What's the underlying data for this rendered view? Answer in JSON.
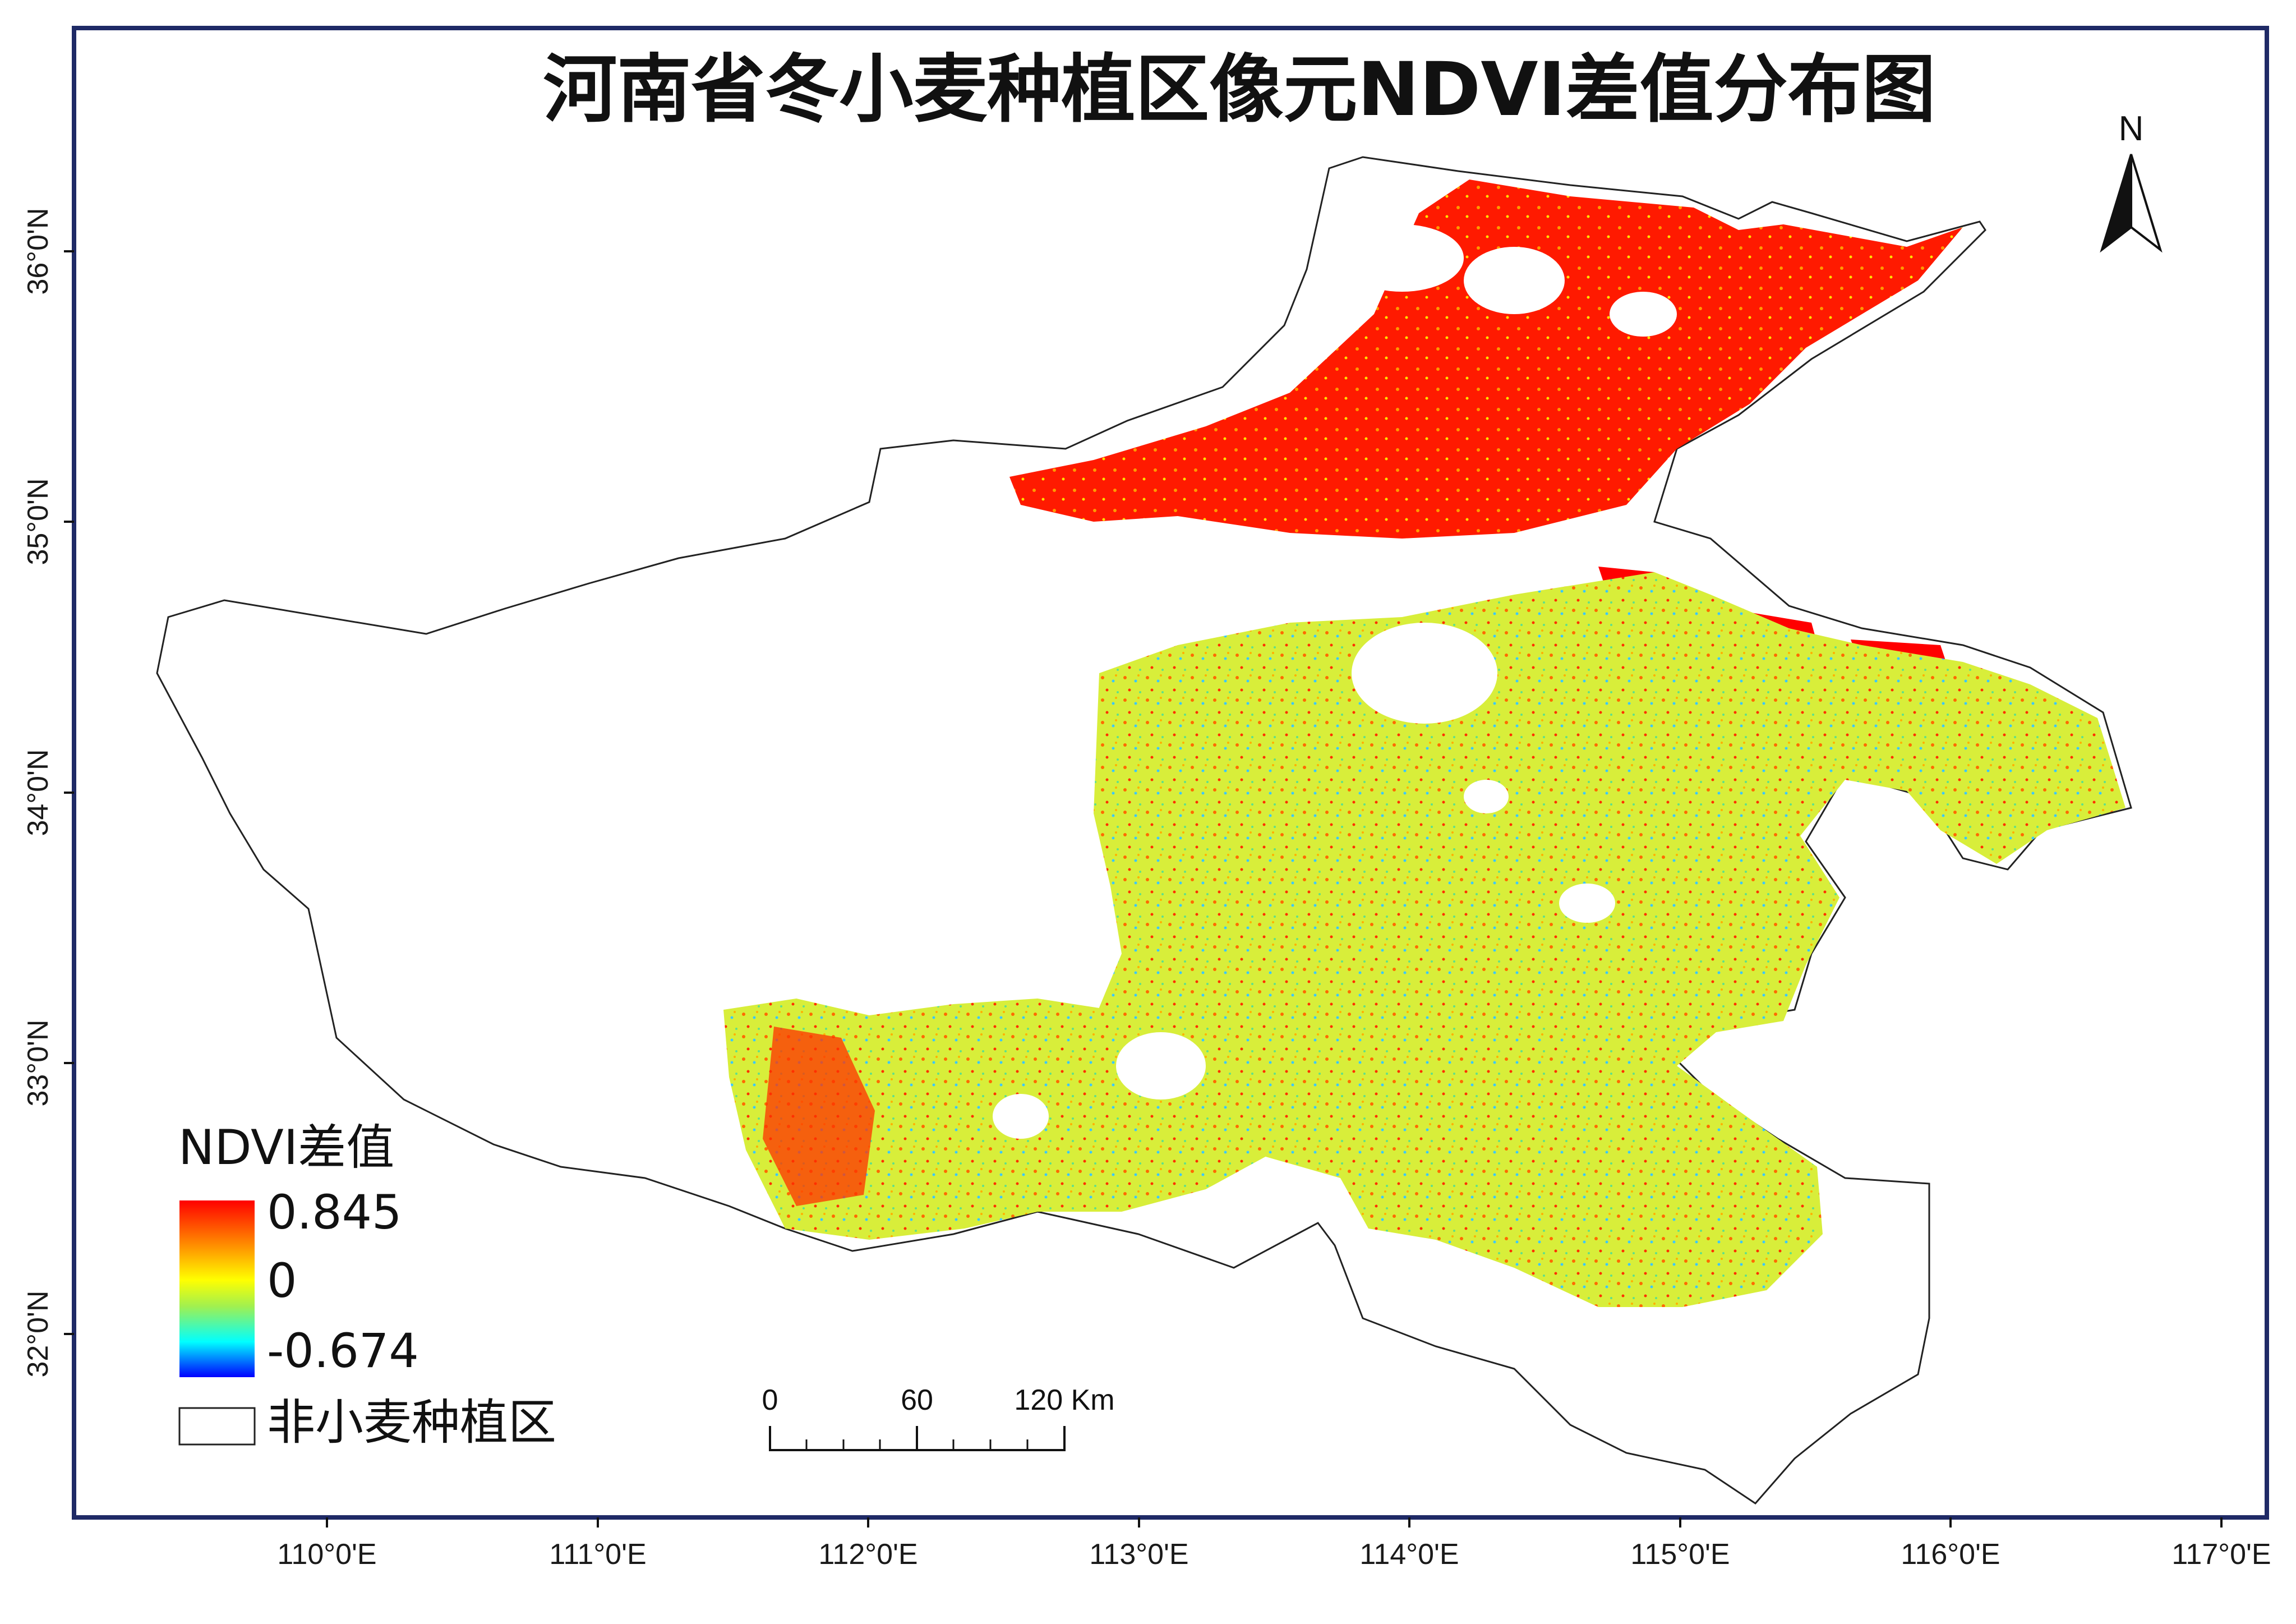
{
  "title": "河南省冬小麦种植区像元NDVI差值分布图",
  "north_label": "N",
  "lon_ticks": [
    "110°0'E",
    "111°0'E",
    "112°0'E",
    "113°0'E",
    "114°0'E",
    "115°0'E",
    "116°0'E",
    "117°0'E"
  ],
  "lat_ticks": [
    "36°0'N",
    "35°0'N",
    "34°0'N",
    "33°0'N",
    "32°0'N"
  ],
  "legend": {
    "title": "NDVI差值",
    "max_label": "0.845",
    "mid_label": "0",
    "min_label": "-0.674",
    "nodata_label": "非小麦种植区",
    "colors": [
      "#ff0000",
      "#ff8c00",
      "#ffff00",
      "#a0f050",
      "#00ffff",
      "#0000ff"
    ]
  },
  "scale_bar": {
    "labels": [
      "0",
      "60",
      "120 Km"
    ]
  },
  "colors": {
    "frame": "#1f2a66",
    "outline": "#222222",
    "high": "#ff0000",
    "mid": "#e7f23c",
    "low": "#3cb8ff"
  }
}
